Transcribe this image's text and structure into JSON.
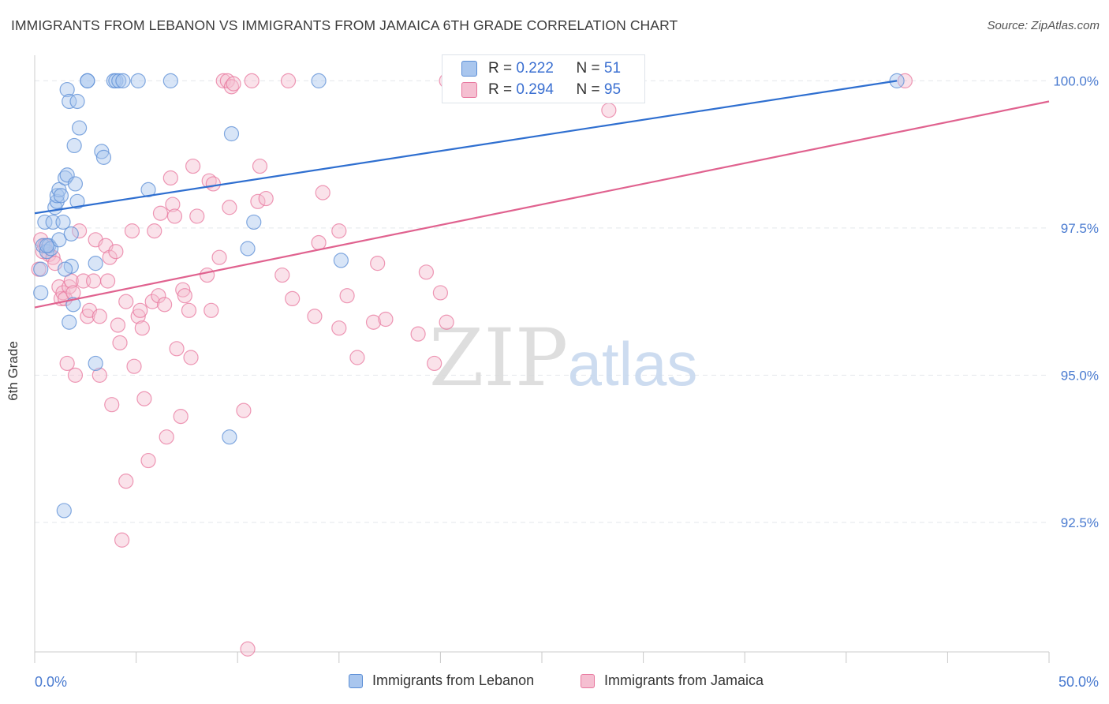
{
  "title": "IMMIGRANTS FROM LEBANON VS IMMIGRANTS FROM JAMAICA 6TH GRADE CORRELATION CHART",
  "source": "Source: ZipAtlas.com",
  "watermark": {
    "zip": "ZIP",
    "atlas": "atlas"
  },
  "stats": {
    "r_label": "R =",
    "n_label": "N =",
    "rows": [
      {
        "r": "0.222",
        "n": "51"
      },
      {
        "r": "0.294",
        "n": "95"
      }
    ]
  },
  "chart_data": {
    "type": "scatter",
    "title": "IMMIGRANTS FROM LEBANON VS IMMIGRANTS FROM JAMAICA 6TH GRADE CORRELATION CHART",
    "xlabel": "",
    "ylabel": "6th Grade",
    "xlim": [
      0,
      50
    ],
    "ylim": [
      90.3,
      100.3
    ],
    "x_tick_labels": [
      "0.0%",
      "50.0%"
    ],
    "y_ticks": [
      92.5,
      95.0,
      97.5,
      100.0
    ],
    "y_tick_labels": [
      "92.5%",
      "95.0%",
      "97.5%",
      "100.0%"
    ],
    "grid": true,
    "legend_position": "bottom",
    "series": [
      {
        "name": "Immigrants from Lebanon",
        "color": "#5b8ed6",
        "fill": "#a9c6ee",
        "r": 0.222,
        "n": 51,
        "trend": [
          [
            0,
            97.75
          ],
          [
            42.5,
            100.0
          ]
        ],
        "points": [
          [
            0.3,
            96.8
          ],
          [
            0.3,
            96.4
          ],
          [
            0.4,
            97.2
          ],
          [
            0.5,
            97.6
          ],
          [
            0.6,
            97.1
          ],
          [
            0.7,
            97.2
          ],
          [
            0.8,
            97.15
          ],
          [
            0.9,
            97.6
          ],
          [
            1.0,
            97.85
          ],
          [
            1.1,
            97.95
          ],
          [
            1.1,
            98.05
          ],
          [
            1.2,
            98.15
          ],
          [
            1.3,
            98.05
          ],
          [
            1.2,
            97.3
          ],
          [
            1.5,
            98.35
          ],
          [
            1.6,
            98.4
          ],
          [
            1.8,
            97.4
          ],
          [
            1.8,
            96.85
          ],
          [
            1.9,
            96.2
          ],
          [
            2.0,
            98.25
          ],
          [
            2.1,
            97.95
          ],
          [
            1.4,
            97.6
          ],
          [
            1.5,
            96.8
          ],
          [
            1.7,
            95.9
          ],
          [
            1.6,
            99.85
          ],
          [
            1.7,
            99.65
          ],
          [
            2.1,
            99.65
          ],
          [
            2.2,
            99.2
          ],
          [
            1.95,
            98.9
          ],
          [
            2.6,
            100.0
          ],
          [
            2.6,
            100.0
          ],
          [
            3.0,
            96.9
          ],
          [
            3.0,
            95.2
          ],
          [
            3.3,
            98.8
          ],
          [
            3.4,
            98.7
          ],
          [
            3.9,
            100.0
          ],
          [
            4.0,
            100.0
          ],
          [
            4.15,
            100.0
          ],
          [
            4.35,
            100.0
          ],
          [
            5.1,
            100.0
          ],
          [
            5.6,
            98.15
          ],
          [
            6.7,
            100.0
          ],
          [
            9.7,
            99.1
          ],
          [
            9.6,
            93.95
          ],
          [
            10.5,
            97.15
          ],
          [
            10.8,
            97.6
          ],
          [
            14.0,
            100.0
          ],
          [
            15.1,
            96.95
          ],
          [
            1.45,
            92.7
          ],
          [
            42.5,
            100.0
          ],
          [
            0.6,
            97.2
          ]
        ]
      },
      {
        "name": "Immigrants from Jamaica",
        "color": "#e8779e",
        "fill": "#f5bfd1",
        "r": 0.294,
        "n": 95,
        "trend": [
          [
            0,
            96.15
          ],
          [
            50,
            99.65
          ]
        ],
        "points": [
          [
            0.2,
            96.8
          ],
          [
            0.3,
            97.3
          ],
          [
            0.4,
            97.1
          ],
          [
            0.5,
            97.2
          ],
          [
            0.7,
            97.05
          ],
          [
            0.9,
            97.0
          ],
          [
            1.0,
            96.9
          ],
          [
            1.2,
            96.5
          ],
          [
            1.3,
            96.3
          ],
          [
            1.4,
            96.4
          ],
          [
            1.5,
            96.3
          ],
          [
            1.6,
            95.2
          ],
          [
            1.7,
            96.5
          ],
          [
            1.8,
            96.6
          ],
          [
            1.9,
            96.4
          ],
          [
            2.0,
            95.0
          ],
          [
            2.2,
            97.45
          ],
          [
            2.4,
            96.6
          ],
          [
            2.6,
            96.0
          ],
          [
            2.7,
            96.1
          ],
          [
            2.9,
            96.6
          ],
          [
            3.0,
            97.3
          ],
          [
            3.2,
            96.0
          ],
          [
            3.2,
            95.0
          ],
          [
            3.5,
            97.2
          ],
          [
            3.6,
            96.6
          ],
          [
            3.7,
            97.0
          ],
          [
            3.8,
            94.5
          ],
          [
            4.0,
            97.1
          ],
          [
            4.1,
            95.85
          ],
          [
            4.2,
            95.55
          ],
          [
            4.3,
            92.2
          ],
          [
            4.5,
            96.25
          ],
          [
            4.5,
            93.2
          ],
          [
            4.8,
            97.45
          ],
          [
            4.9,
            95.15
          ],
          [
            5.1,
            96.0
          ],
          [
            5.2,
            96.1
          ],
          [
            5.3,
            95.8
          ],
          [
            5.4,
            94.6
          ],
          [
            5.6,
            93.55
          ],
          [
            5.8,
            96.25
          ],
          [
            5.9,
            97.45
          ],
          [
            6.1,
            96.35
          ],
          [
            6.2,
            97.75
          ],
          [
            6.4,
            96.2
          ],
          [
            6.5,
            93.95
          ],
          [
            6.7,
            98.35
          ],
          [
            6.8,
            97.9
          ],
          [
            6.9,
            97.7
          ],
          [
            7.0,
            95.45
          ],
          [
            7.2,
            94.3
          ],
          [
            7.3,
            96.45
          ],
          [
            7.4,
            96.35
          ],
          [
            7.6,
            96.1
          ],
          [
            7.7,
            95.3
          ],
          [
            7.8,
            98.55
          ],
          [
            8.0,
            97.7
          ],
          [
            8.5,
            96.7
          ],
          [
            8.6,
            98.3
          ],
          [
            8.7,
            96.1
          ],
          [
            8.8,
            98.25
          ],
          [
            9.1,
            97.0
          ],
          [
            9.3,
            100.0
          ],
          [
            9.5,
            100.0
          ],
          [
            9.6,
            97.85
          ],
          [
            9.7,
            99.9
          ],
          [
            9.8,
            99.95
          ],
          [
            10.3,
            94.4
          ],
          [
            10.5,
            90.35
          ],
          [
            10.7,
            100.0
          ],
          [
            11.0,
            97.95
          ],
          [
            11.1,
            98.55
          ],
          [
            11.4,
            98.0
          ],
          [
            12.2,
            96.7
          ],
          [
            12.5,
            100.0
          ],
          [
            12.7,
            96.3
          ],
          [
            13.8,
            96.0
          ],
          [
            14.0,
            97.25
          ],
          [
            14.2,
            98.1
          ],
          [
            15.0,
            95.8
          ],
          [
            15.0,
            97.45
          ],
          [
            15.4,
            96.35
          ],
          [
            15.9,
            95.3
          ],
          [
            16.7,
            95.9
          ],
          [
            16.9,
            96.9
          ],
          [
            17.3,
            95.95
          ],
          [
            18.9,
            95.7
          ],
          [
            19.3,
            96.75
          ],
          [
            19.7,
            95.2
          ],
          [
            20.0,
            96.4
          ],
          [
            20.3,
            95.9
          ],
          [
            20.3,
            100.0
          ],
          [
            42.9,
            100.0
          ],
          [
            28.3,
            99.5
          ]
        ]
      }
    ]
  }
}
